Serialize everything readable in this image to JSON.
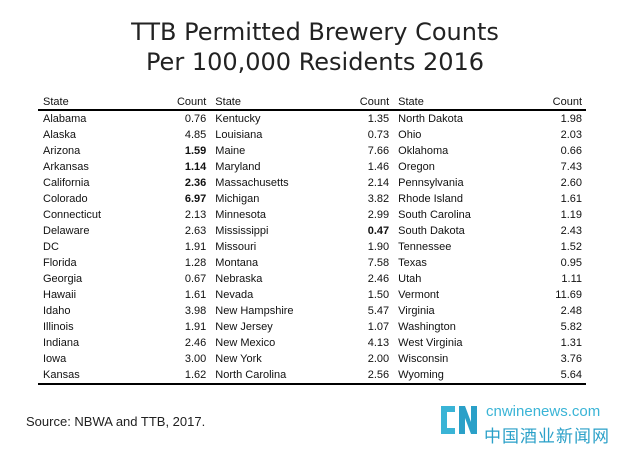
{
  "title_line1": "TTB Permitted Brewery Counts",
  "title_line2": "Per 100,000 Residents 2016",
  "headers": {
    "state": "State",
    "count": "Count"
  },
  "rows": [
    [
      [
        "Alabama",
        "0.76",
        false
      ],
      [
        "Kentucky",
        "1.35",
        false
      ],
      [
        "North Dakota",
        "1.98",
        false
      ]
    ],
    [
      [
        "Alaska",
        "4.85",
        false
      ],
      [
        "Louisiana",
        "0.73",
        false
      ],
      [
        "Ohio",
        "2.03",
        false
      ]
    ],
    [
      [
        "Arizona",
        "1.59",
        true
      ],
      [
        "Maine",
        "7.66",
        false
      ],
      [
        "Oklahoma",
        "0.66",
        false
      ]
    ],
    [
      [
        "Arkansas",
        "1.14",
        true
      ],
      [
        "Maryland",
        "1.46",
        false
      ],
      [
        "Oregon",
        "7.43",
        false
      ]
    ],
    [
      [
        "California",
        "2.36",
        true
      ],
      [
        "Massachusetts",
        "2.14",
        false
      ],
      [
        "Pennsylvania",
        "2.60",
        false
      ]
    ],
    [
      [
        "Colorado",
        "6.97",
        true
      ],
      [
        "Michigan",
        "3.82",
        false
      ],
      [
        "Rhode Island",
        "1.61",
        false
      ]
    ],
    [
      [
        "Connecticut",
        "2.13",
        false
      ],
      [
        "Minnesota",
        "2.99",
        false
      ],
      [
        "South Carolina",
        "1.19",
        false
      ]
    ],
    [
      [
        "Delaware",
        "2.63",
        false
      ],
      [
        "Mississippi",
        "0.47",
        true
      ],
      [
        "South Dakota",
        "2.43",
        false
      ]
    ],
    [
      [
        "DC",
        "1.91",
        false
      ],
      [
        "Missouri",
        "1.90",
        false
      ],
      [
        "Tennessee",
        "1.52",
        false
      ]
    ],
    [
      [
        "Florida",
        "1.28",
        false
      ],
      [
        "Montana",
        "7.58",
        false
      ],
      [
        "Texas",
        "0.95",
        false
      ]
    ],
    [
      [
        "Georgia",
        "0.67",
        false
      ],
      [
        "Nebraska",
        "2.46",
        false
      ],
      [
        "Utah",
        "1.11",
        false
      ]
    ],
    [
      [
        "Hawaii",
        "1.61",
        false
      ],
      [
        "Nevada",
        "1.50",
        false
      ],
      [
        "Vermont",
        "11.69",
        false
      ]
    ],
    [
      [
        "Idaho",
        "3.98",
        false
      ],
      [
        "New Hampshire",
        "5.47",
        false
      ],
      [
        "Virginia",
        "2.48",
        false
      ]
    ],
    [
      [
        "Illinois",
        "1.91",
        false
      ],
      [
        "New Jersey",
        "1.07",
        false
      ],
      [
        "Washington",
        "5.82",
        false
      ]
    ],
    [
      [
        "Indiana",
        "2.46",
        false
      ],
      [
        "New Mexico",
        "4.13",
        false
      ],
      [
        "West Virginia",
        "1.31",
        false
      ]
    ],
    [
      [
        "Iowa",
        "3.00",
        false
      ],
      [
        "New York",
        "2.00",
        false
      ],
      [
        "Wisconsin",
        "3.76",
        false
      ]
    ],
    [
      [
        "Kansas",
        "1.62",
        false
      ],
      [
        "North Carolina",
        "2.56",
        false
      ],
      [
        "Wyoming",
        "5.64",
        false
      ]
    ]
  ],
  "source": "Source: NBWA and TTB, 2017.",
  "watermark": {
    "url": "cnwinenews.com",
    "cn": "中国酒业新闻网",
    "icon": "cnwinenews-logo-icon",
    "color": "#3ab4d6"
  }
}
